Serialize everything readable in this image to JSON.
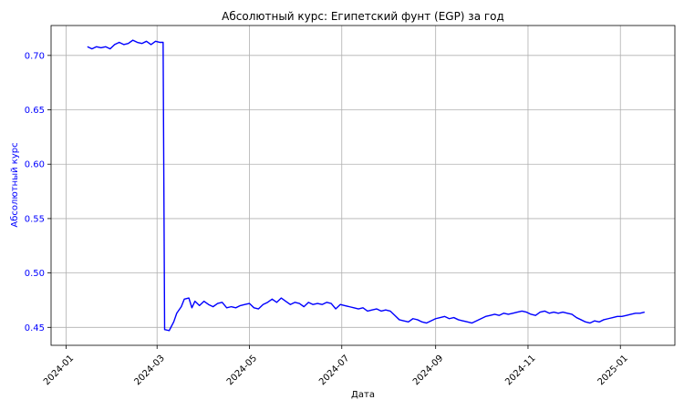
{
  "chart_data": {
    "type": "line",
    "title": "Абсолютный курс: Египетский фунт (EGP) за год",
    "xlabel": "Дата",
    "ylabel": "Абсолютный курс",
    "x_range": [
      "2023-12-22",
      "2025-02-06"
    ],
    "ylim": [
      0.4335,
      0.7275
    ],
    "grid": true,
    "line_color": "#0000ff",
    "label_color": "#0000ff",
    "y_ticks": [
      0.45,
      0.5,
      0.55,
      0.6,
      0.65,
      0.7
    ],
    "y_tick_labels": [
      "0.45",
      "0.50",
      "0.55",
      "0.60",
      "0.65",
      "0.70"
    ],
    "x_ticks": [
      "2024-01-01",
      "2024-03-01",
      "2024-05-01",
      "2024-07-01",
      "2024-09-01",
      "2024-11-01",
      "2025-01-01"
    ],
    "x_tick_labels": [
      "2024-01",
      "2024-03",
      "2024-05",
      "2024-07",
      "2024-09",
      "2024-11",
      "2025-01"
    ],
    "series": [
      {
        "points": [
          [
            "2024-01-15",
            0.708
          ],
          [
            "2024-01-18",
            0.706
          ],
          [
            "2024-01-21",
            0.708
          ],
          [
            "2024-01-24",
            0.707
          ],
          [
            "2024-01-27",
            0.708
          ],
          [
            "2024-01-30",
            0.706
          ],
          [
            "2024-02-02",
            0.71
          ],
          [
            "2024-02-05",
            0.712
          ],
          [
            "2024-02-08",
            0.71
          ],
          [
            "2024-02-11",
            0.711
          ],
          [
            "2024-02-14",
            0.714
          ],
          [
            "2024-02-17",
            0.712
          ],
          [
            "2024-02-20",
            0.711
          ],
          [
            "2024-02-23",
            0.713
          ],
          [
            "2024-02-26",
            0.71
          ],
          [
            "2024-02-29",
            0.713
          ],
          [
            "2024-03-03",
            0.712
          ],
          [
            "2024-03-05",
            0.712
          ],
          [
            "2024-03-06",
            0.448
          ],
          [
            "2024-03-09",
            0.447
          ],
          [
            "2024-03-12",
            0.455
          ],
          [
            "2024-03-14",
            0.463
          ],
          [
            "2024-03-17",
            0.469
          ],
          [
            "2024-03-19",
            0.476
          ],
          [
            "2024-03-22",
            0.477
          ],
          [
            "2024-03-24",
            0.468
          ],
          [
            "2024-03-26",
            0.474
          ],
          [
            "2024-03-29",
            0.47
          ],
          [
            "2024-04-01",
            0.474
          ],
          [
            "2024-04-04",
            0.471
          ],
          [
            "2024-04-07",
            0.469
          ],
          [
            "2024-04-10",
            0.472
          ],
          [
            "2024-04-13",
            0.473
          ],
          [
            "2024-04-16",
            0.468
          ],
          [
            "2024-04-19",
            0.469
          ],
          [
            "2024-04-22",
            0.468
          ],
          [
            "2024-04-25",
            0.47
          ],
          [
            "2024-04-28",
            0.471
          ],
          [
            "2024-05-01",
            0.472
          ],
          [
            "2024-05-04",
            0.468
          ],
          [
            "2024-05-07",
            0.467
          ],
          [
            "2024-05-10",
            0.471
          ],
          [
            "2024-05-13",
            0.473
          ],
          [
            "2024-05-16",
            0.476
          ],
          [
            "2024-05-19",
            0.473
          ],
          [
            "2024-05-22",
            0.477
          ],
          [
            "2024-05-25",
            0.474
          ],
          [
            "2024-05-28",
            0.471
          ],
          [
            "2024-05-31",
            0.473
          ],
          [
            "2024-06-03",
            0.472
          ],
          [
            "2024-06-06",
            0.469
          ],
          [
            "2024-06-09",
            0.473
          ],
          [
            "2024-06-12",
            0.471
          ],
          [
            "2024-06-15",
            0.472
          ],
          [
            "2024-06-18",
            0.471
          ],
          [
            "2024-06-21",
            0.473
          ],
          [
            "2024-06-24",
            0.472
          ],
          [
            "2024-06-27",
            0.467
          ],
          [
            "2024-06-30",
            0.471
          ],
          [
            "2024-07-03",
            0.47
          ],
          [
            "2024-07-06",
            0.469
          ],
          [
            "2024-07-09",
            0.468
          ],
          [
            "2024-07-12",
            0.467
          ],
          [
            "2024-07-15",
            0.468
          ],
          [
            "2024-07-18",
            0.465
          ],
          [
            "2024-07-21",
            0.466
          ],
          [
            "2024-07-24",
            0.467
          ],
          [
            "2024-07-27",
            0.465
          ],
          [
            "2024-07-30",
            0.466
          ],
          [
            "2024-08-02",
            0.465
          ],
          [
            "2024-08-05",
            0.461
          ],
          [
            "2024-08-08",
            0.457
          ],
          [
            "2024-08-11",
            0.456
          ],
          [
            "2024-08-14",
            0.455
          ],
          [
            "2024-08-17",
            0.458
          ],
          [
            "2024-08-20",
            0.457
          ],
          [
            "2024-08-23",
            0.455
          ],
          [
            "2024-08-26",
            0.454
          ],
          [
            "2024-08-29",
            0.456
          ],
          [
            "2024-09-01",
            0.458
          ],
          [
            "2024-09-04",
            0.459
          ],
          [
            "2024-09-07",
            0.46
          ],
          [
            "2024-09-10",
            0.458
          ],
          [
            "2024-09-13",
            0.459
          ],
          [
            "2024-09-16",
            0.457
          ],
          [
            "2024-09-19",
            0.456
          ],
          [
            "2024-09-22",
            0.455
          ],
          [
            "2024-09-25",
            0.454
          ],
          [
            "2024-09-28",
            0.456
          ],
          [
            "2024-10-01",
            0.458
          ],
          [
            "2024-10-04",
            0.46
          ],
          [
            "2024-10-07",
            0.461
          ],
          [
            "2024-10-10",
            0.462
          ],
          [
            "2024-10-13",
            0.461
          ],
          [
            "2024-10-16",
            0.463
          ],
          [
            "2024-10-19",
            0.462
          ],
          [
            "2024-10-22",
            0.463
          ],
          [
            "2024-10-25",
            0.464
          ],
          [
            "2024-10-28",
            0.465
          ],
          [
            "2024-10-31",
            0.464
          ],
          [
            "2024-11-03",
            0.462
          ],
          [
            "2024-11-06",
            0.461
          ],
          [
            "2024-11-09",
            0.464
          ],
          [
            "2024-11-12",
            0.465
          ],
          [
            "2024-11-15",
            0.463
          ],
          [
            "2024-11-18",
            0.464
          ],
          [
            "2024-11-21",
            0.463
          ],
          [
            "2024-11-24",
            0.464
          ],
          [
            "2024-11-27",
            0.463
          ],
          [
            "2024-11-30",
            0.462
          ],
          [
            "2024-12-03",
            0.459
          ],
          [
            "2024-12-06",
            0.457
          ],
          [
            "2024-12-09",
            0.455
          ],
          [
            "2024-12-12",
            0.454
          ],
          [
            "2024-12-15",
            0.456
          ],
          [
            "2024-12-18",
            0.455
          ],
          [
            "2024-12-21",
            0.457
          ],
          [
            "2024-12-24",
            0.458
          ],
          [
            "2024-12-27",
            0.459
          ],
          [
            "2024-12-30",
            0.46
          ],
          [
            "2025-01-02",
            0.46
          ],
          [
            "2025-01-05",
            0.461
          ],
          [
            "2025-01-08",
            0.462
          ],
          [
            "2025-01-11",
            0.463
          ],
          [
            "2025-01-14",
            0.463
          ],
          [
            "2025-01-17",
            0.464
          ]
        ]
      }
    ]
  }
}
